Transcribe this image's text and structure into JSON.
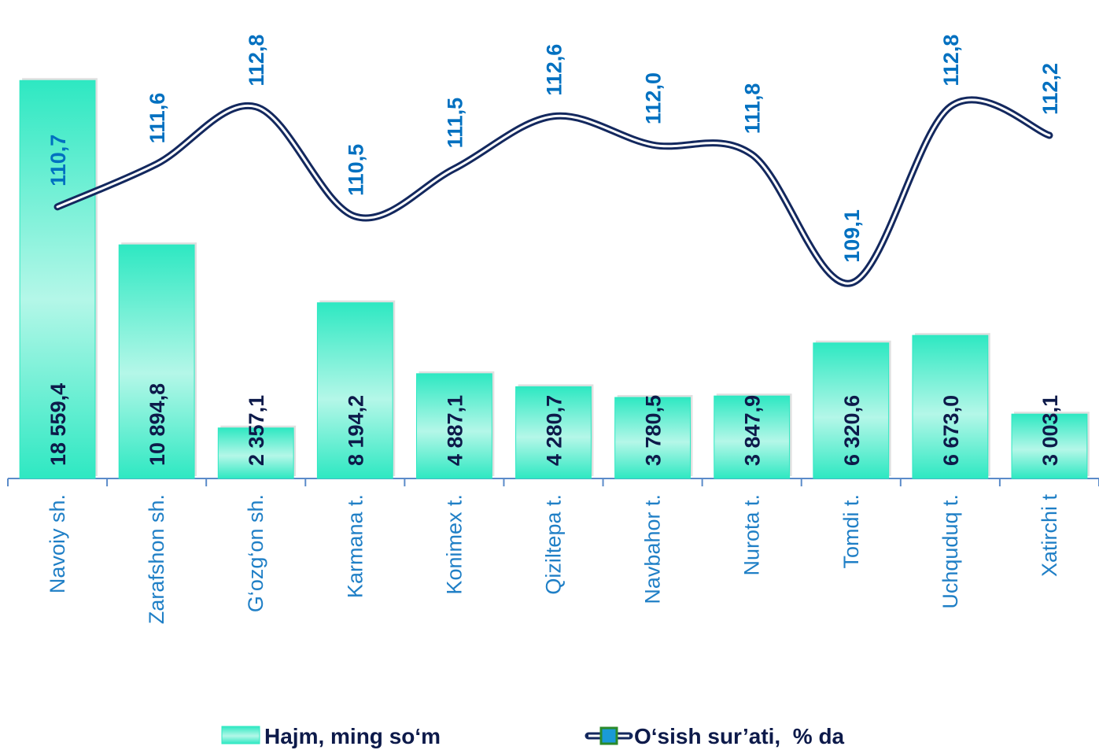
{
  "chart_data": {
    "type": "bar-line",
    "categories": [
      "Navoiy sh.",
      "Zarafshon sh.",
      "G‘ozg‘on sh.",
      "Karmana t.",
      "Konimex t.",
      "Qiziltepa t.",
      "Navbahor t.",
      "Nurota t.",
      "Tomdi t.",
      "Uchquduq t.",
      "Xatirchi t"
    ],
    "series": [
      {
        "name": "Hajm, ming so‘m",
        "type": "bar",
        "color": "#2ee8c2",
        "values": [
          18559.4,
          10894.8,
          2357.1,
          8194.2,
          4887.1,
          4280.7,
          3780.5,
          3847.9,
          6320.6,
          6673.0,
          3003.1
        ],
        "value_labels": [
          "18 559,4",
          "10 894,8",
          "2 357,1",
          "8 194,2",
          "4 887,1",
          "4 280,7",
          "3 780,5",
          "3 847,9",
          "6 320,6",
          "6 673,0",
          "3 003,1"
        ]
      },
      {
        "name": "O‘sish sur’ati,  % da",
        "type": "line",
        "axis": "y2",
        "color": "#13285e",
        "values": [
          110.7,
          111.6,
          112.8,
          110.5,
          111.5,
          112.6,
          112.0,
          111.8,
          109.1,
          112.8,
          112.2
        ],
        "value_labels": [
          "110,7",
          "111,6",
          "112,8",
          "110,5",
          "111,5",
          "112,6",
          "112,0",
          "111,8",
          "109,1",
          "112,8",
          "112,2"
        ]
      }
    ],
    "ylim": [
      0,
      20000
    ],
    "y2lim": [
      105,
      114
    ],
    "smooth": true
  }
}
